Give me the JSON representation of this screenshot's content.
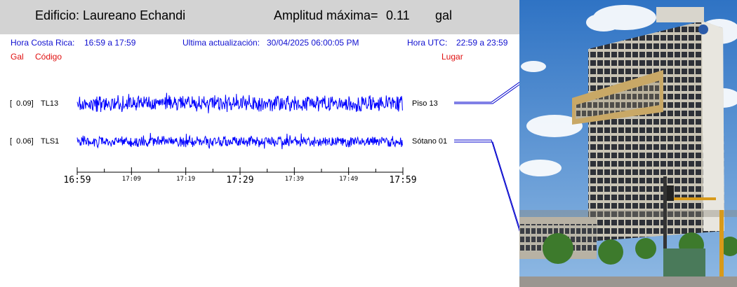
{
  "header": {
    "building": "Edificio: Laureano Echandi",
    "amp_label": "Amplitud máxima=",
    "amp_value": "0.11",
    "amp_unit": "gal"
  },
  "info": {
    "local_label": "Hora Costa Rica:",
    "local_range": "16:59 a 17:59",
    "update_label": "Ultima actualización:",
    "update_value": "30/04/2025 06:00:05 PM",
    "utc_label": "Hora UTC:",
    "utc_range": "22:59 a 23:59"
  },
  "columns": {
    "gal": "Gal",
    "code": "Código",
    "place": "Lugar"
  },
  "channels": [
    {
      "amp": "[  0.09]",
      "code": "TL13",
      "place": "Piso 13"
    },
    {
      "amp": "[  0.06]",
      "code": "TLS1",
      "place": "Sótano 01"
    }
  ],
  "axis": {
    "labels": [
      "16:59",
      "17:09",
      "17:19",
      "17:29",
      "17:39",
      "17:49",
      "17:59"
    ],
    "major": [
      true,
      false,
      false,
      true,
      false,
      false,
      true
    ]
  },
  "colors": {
    "trace": "#0000ff",
    "header_bg": "#d3d3d3",
    "info_text": "#1010d0",
    "accent_red": "#e01010"
  }
}
